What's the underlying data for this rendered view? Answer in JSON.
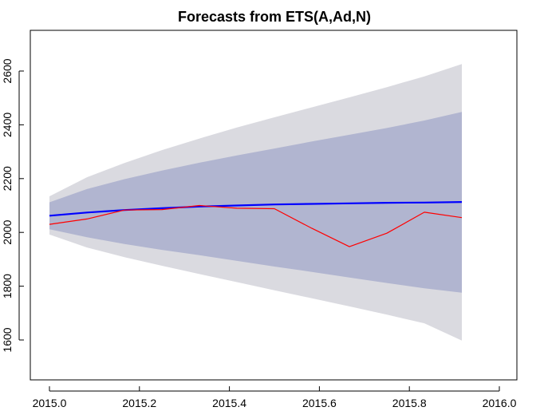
{
  "chart_data": {
    "type": "line",
    "title": "Forecasts from ETS(A,Ad,N)",
    "xlabel": "",
    "ylabel": "",
    "xlim": [
      2015.0,
      2016.0
    ],
    "ylim": [
      1450,
      2750
    ],
    "x_ticks": [
      2015.0,
      2015.2,
      2015.4,
      2015.6,
      2015.8,
      2016.0
    ],
    "x_tick_labels": [
      "2015.0",
      "2015.2",
      "2015.4",
      "2015.6",
      "2015.8",
      "2016.0"
    ],
    "y_ticks": [
      1600,
      1800,
      2000,
      2200,
      2400,
      2600
    ],
    "y_tick_labels": [
      "1600",
      "1800",
      "2000",
      "2200",
      "2400",
      "2600"
    ],
    "grid": false,
    "x": [
      2015.0,
      2015.0833,
      2015.1667,
      2015.25,
      2015.3333,
      2015.4167,
      2015.5,
      2015.5833,
      2015.6667,
      2015.75,
      2015.8333,
      2015.9167
    ],
    "bands": [
      {
        "level": "outer",
        "color": "#dadae0",
        "lower": [
          1992,
          1944,
          1908,
          1876,
          1845,
          1815,
          1785,
          1755,
          1725,
          1694,
          1662,
          1598
        ],
        "upper": [
          2134,
          2205,
          2258,
          2306,
          2349,
          2390,
          2428,
          2465,
          2502,
          2540,
          2580,
          2626
        ]
      },
      {
        "level": "inner",
        "color": "#b1b5d0",
        "lower": [
          2012,
          1982,
          1957,
          1935,
          1915,
          1894,
          1873,
          1853,
          1832,
          1812,
          1792,
          1776
        ],
        "upper": [
          2112,
          2161,
          2198,
          2230,
          2259,
          2286,
          2312,
          2338,
          2363,
          2388,
          2416,
          2448
        ]
      }
    ],
    "series": [
      {
        "color": "#0000ff",
        "values": [
          2062,
          2074,
          2083,
          2090,
          2096,
          2100,
          2104,
          2106,
          2108,
          2110,
          2111,
          2113
        ]
      },
      {
        "color": "#ff0000",
        "values": [
          2030,
          2050,
          2083,
          2085,
          2100,
          2090,
          2088,
          2015,
          1947,
          1997,
          2075,
          2055
        ]
      }
    ]
  }
}
